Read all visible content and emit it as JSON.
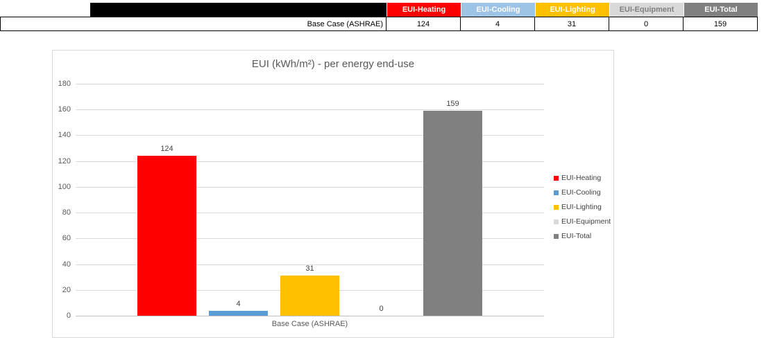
{
  "table": {
    "row_label": "Base Case (ASHRAE)",
    "columns": [
      {
        "label": "EUI-Heating",
        "color": "#FF0000",
        "text_color": "#FFFFFF",
        "value": "124"
      },
      {
        "label": "EUI-Cooling",
        "color": "#9DC3E6",
        "text_color": "#FFFFFF",
        "value": "4"
      },
      {
        "label": "EUI-Lighting",
        "color": "#FFC000",
        "text_color": "#FFFFFF",
        "value": "31"
      },
      {
        "label": "EUI-Equipment",
        "color": "#D9D9D9",
        "text_color": "#808080",
        "value": "0"
      },
      {
        "label": "EUI-Total",
        "color": "#808080",
        "text_color": "#FFFFFF",
        "value": "159"
      }
    ]
  },
  "chart_data": {
    "type": "bar",
    "title": "EUI (kWh/m²) - per energy end-use",
    "categories": [
      "Base Case (ASHRAE)"
    ],
    "series": [
      {
        "name": "EUI-Heating",
        "color": "#FF0000",
        "values": [
          124
        ]
      },
      {
        "name": "EUI-Cooling",
        "color": "#5B9BD5",
        "values": [
          4
        ]
      },
      {
        "name": "EUI-Lighting",
        "color": "#FFC000",
        "values": [
          31
        ]
      },
      {
        "name": "EUI-Equipment",
        "color": "#D9D9D9",
        "values": [
          0
        ]
      },
      {
        "name": "EUI-Total",
        "color": "#808080",
        "values": [
          159
        ]
      }
    ],
    "xlabel": "",
    "ylabel": "",
    "ylim": [
      0,
      180
    ],
    "yticks": [
      0,
      20,
      40,
      60,
      80,
      100,
      120,
      140,
      160,
      180
    ],
    "grid": true,
    "legend_position": "right"
  }
}
